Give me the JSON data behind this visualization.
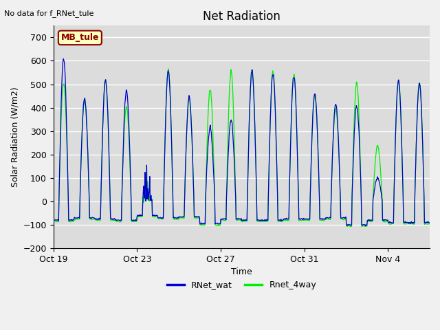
{
  "title": "Net Radiation",
  "top_left_text": "No data for f_RNet_tule",
  "xlabel": "Time",
  "ylabel": "Solar Radiation (W/m2)",
  "ylim": [
    -200,
    750
  ],
  "yticks": [
    -200,
    -100,
    0,
    100,
    200,
    300,
    400,
    500,
    600,
    700
  ],
  "line1_color": "#0000cc",
  "line2_color": "#00ee00",
  "legend_label1": "RNet_wat",
  "legend_label2": "Rnet_4way",
  "box_label": "MB_tule",
  "box_facecolor": "#ffffc0",
  "box_edgecolor": "#8b0000",
  "box_textcolor": "#8b0000",
  "xtick_labels": [
    "Oct 19",
    "Oct 23",
    "Oct 27",
    "Oct 31",
    "Nov 4"
  ],
  "xtick_positions": [
    0,
    4,
    8,
    12,
    16
  ],
  "total_days": 18,
  "pts_per_day": 48,
  "fig_facecolor": "#f0f0f0",
  "axes_facecolor": "#dcdcdc",
  "peaks_w": [
    610,
    440,
    520,
    475,
    200,
    555,
    445,
    315,
    350,
    555,
    545,
    535,
    460,
    415,
    410,
    100,
    520,
    505
  ],
  "peaks_g": [
    510,
    430,
    510,
    405,
    185,
    560,
    435,
    480,
    555,
    560,
    555,
    540,
    455,
    395,
    510,
    240,
    510,
    505
  ],
  "night_w": [
    -80,
    -70,
    -75,
    -80,
    -60,
    -70,
    -65,
    -95,
    -75,
    -80,
    -80,
    -75,
    -75,
    -70,
    -100,
    -80,
    -90,
    -90
  ],
  "night_g": [
    -85,
    -75,
    -80,
    -85,
    -65,
    -75,
    -70,
    -100,
    -80,
    -85,
    -85,
    -80,
    -80,
    -75,
    -105,
    -85,
    -95,
    -95
  ]
}
